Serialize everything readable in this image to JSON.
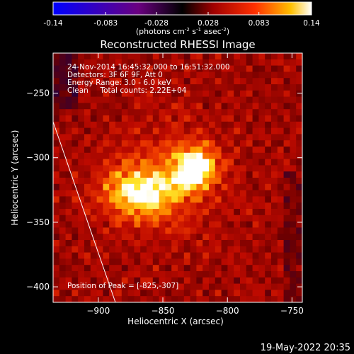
{
  "chart_data": {
    "type": "heatmap",
    "title": "Reconstructed RHESSI Image",
    "xlabel": "Heliocentric X (arcsec)",
    "ylabel": "Heliocentric Y (arcsec)",
    "xlim": [
      -935,
      -742
    ],
    "ylim": [
      -412,
      -219
    ],
    "x_ticks": [
      -900,
      -850,
      -800,
      -750
    ],
    "y_ticks": [
      -250,
      -300,
      -350,
      -400
    ],
    "colorbar": {
      "range": [
        -0.14,
        0.14
      ],
      "ticks": [
        "-0.14",
        "-0.083",
        "-0.028",
        "0.028",
        "0.083",
        "0.14"
      ],
      "label": "(photons cm⁻² s⁻¹ asec⁻²)",
      "label_parts": {
        "pre": "(photons cm",
        "sup1": "-2",
        "mid1": " s",
        "sup2": "-1",
        "mid2": " asec",
        "sup3": "-2",
        "post": ")"
      }
    },
    "sources": [
      {
        "x": -825,
        "y": -307,
        "intensity": 0.14
      },
      {
        "x": -868,
        "y": -327,
        "intensity": 0.12
      }
    ],
    "info_lines": [
      "24-Nov-2014 16:45:32.000 to 16:51:32.000",
      "Detectors: 3F 6F 9F, Att 0",
      "Energy Range: 3.0 - 6.0 keV",
      "Clean     Total counts: 2.22E+04"
    ],
    "peak_label": "Position of Peak = [-825,-307]",
    "limb_line": true
  },
  "footer": {
    "timestamp": "19-May-2022 20:35"
  }
}
